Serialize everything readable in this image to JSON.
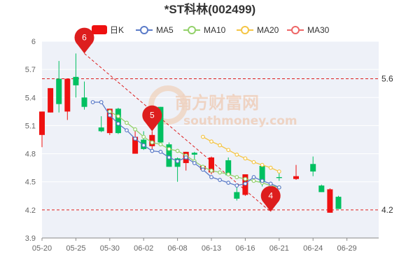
{
  "chart_data": {
    "type": "candlestick",
    "title": "*ST科林(002499)",
    "legend": [
      "日K",
      "MA5",
      "MA10",
      "MA20",
      "MA30"
    ],
    "colors": {
      "up": "#ee1111",
      "down": "#00c060",
      "MA5": "#5b7bc8",
      "MA10": "#93d16a",
      "MA20": "#f5c545",
      "MA30": "#ee6666",
      "pin": "#dd1e1e",
      "ref": "#dd1e1e"
    },
    "y_ticks": [
      "6",
      "5.7",
      "5.4",
      "5.1",
      "4.8",
      "4.5",
      "4.2",
      "3.9"
    ],
    "ylim": [
      3.9,
      6.0
    ],
    "x_ticks": [
      "05-20",
      "05-25",
      "05-30",
      "06-02",
      "06-08",
      "06-13",
      "06-16",
      "06-21",
      "06-24",
      "06-29"
    ],
    "x_tick_index": [
      0,
      4,
      8,
      12,
      16,
      20,
      24,
      28,
      32,
      36
    ],
    "grid": true,
    "legend_position": "top",
    "ref_lines": [
      {
        "value": 5.6,
        "label": "5.6"
      },
      {
        "value": 4.2,
        "label": "4.2"
      }
    ],
    "pins": [
      {
        "label": "6",
        "index": 5,
        "value": 5.87
      },
      {
        "label": "5",
        "index": 13,
        "value": 5.04
      },
      {
        "label": "4",
        "index": 27,
        "value": 4.18
      }
    ],
    "trend_lines": [
      {
        "from_index": 5,
        "from_value": 5.87,
        "to_index": 27,
        "to_value": 4.18
      }
    ],
    "candles": [
      {
        "o": 5.0,
        "c": 5.25,
        "h": 5.25,
        "l": 4.87
      },
      {
        "o": 5.24,
        "c": 5.5,
        "h": 5.5,
        "l": 5.24
      },
      {
        "o": 5.6,
        "c": 5.33,
        "h": 5.79,
        "l": 5.24
      },
      {
        "o": 5.25,
        "c": 5.6,
        "h": 5.6,
        "l": 5.16
      },
      {
        "o": 5.62,
        "c": 5.53,
        "h": 5.87,
        "l": 5.4
      },
      {
        "o": 5.4,
        "c": 5.3,
        "h": 5.57,
        "l": 5.27
      },
      {
        "o": 5.08,
        "c": 5.04,
        "h": 5.2,
        "l": 5.03
      },
      {
        "o": 5.02,
        "c": 5.28,
        "h": 5.28,
        "l": 5.0
      },
      {
        "o": 5.28,
        "c": 5.02,
        "h": 5.29,
        "l": 5.01
      },
      {
        "o": 4.8,
        "c": 4.98,
        "h": 5.05,
        "l": 4.8
      },
      {
        "o": 4.95,
        "c": 4.85,
        "h": 5.04,
        "l": 4.84
      },
      {
        "o": 4.88,
        "c": 5.0,
        "h": 5.04,
        "l": 4.85
      },
      {
        "o": 5.3,
        "c": 4.92,
        "h": 5.3,
        "l": 4.88
      },
      {
        "o": 4.9,
        "c": 4.66,
        "h": 4.92,
        "l": 4.66
      },
      {
        "o": 4.75,
        "c": 4.66,
        "h": 4.76,
        "l": 4.5
      },
      {
        "o": 4.7,
        "c": 4.82,
        "h": 4.82,
        "l": 4.62
      },
      {
        "o": 4.81,
        "c": 4.79,
        "h": 4.82,
        "l": 4.68
      },
      {
        "o": 4.63,
        "c": 4.67,
        "h": 4.68,
        "l": 4.62
      },
      {
        "o": 4.6,
        "c": 4.76,
        "h": 4.77,
        "l": 4.58
      },
      {
        "o": 4.73,
        "c": 4.57,
        "h": 4.76,
        "l": 4.56
      },
      {
        "o": 4.39,
        "c": 4.32,
        "h": 4.45,
        "l": 4.3
      },
      {
        "o": 4.36,
        "c": 4.58,
        "h": 4.58,
        "l": 4.35
      },
      {
        "o": 4.67,
        "c": 4.5,
        "h": 4.69,
        "l": 4.45
      },
      {
        "o": 4.55,
        "c": 4.54,
        "h": 4.6,
        "l": 4.51
      },
      {
        "o": 4.53,
        "c": 4.56,
        "h": 4.68,
        "l": 4.52
      },
      {
        "o": 4.69,
        "c": 4.61,
        "h": 4.77,
        "l": 4.56
      },
      {
        "o": 4.46,
        "c": 4.39,
        "h": 4.47,
        "l": 4.39
      },
      {
        "o": 4.17,
        "c": 4.42,
        "h": 4.43,
        "l": 4.17
      },
      {
        "o": 4.34,
        "c": 4.21,
        "h": 4.35,
        "l": 4.21
      }
    ],
    "candle_index": [
      0,
      1,
      2,
      3,
      4,
      5,
      7,
      8,
      9,
      11,
      12,
      13,
      14,
      15,
      16,
      17,
      18,
      19,
      20,
      22,
      23,
      24,
      26,
      28,
      30,
      32,
      33,
      34,
      35
    ],
    "ma5": [
      5.35,
      5.35,
      5.21,
      5.12,
      5.05,
      4.96,
      4.89,
      4.83,
      4.82,
      4.76,
      4.72,
      4.76,
      4.7,
      4.63,
      4.55,
      4.52,
      4.49,
      4.46,
      4.48,
      4.55,
      4.51,
      4.48,
      4.44
    ],
    "ma5_index": [
      6,
      7,
      8,
      9,
      10,
      11,
      12,
      13,
      14,
      15,
      16,
      17,
      18,
      19,
      20,
      21,
      22,
      23,
      24,
      25,
      26,
      27,
      28
    ],
    "ma10": [
      5.25,
      5.2,
      5.13,
      5.06,
      4.98,
      4.92,
      4.9,
      4.85,
      4.83,
      4.78,
      4.72,
      4.66,
      4.62,
      4.6,
      4.58,
      4.55,
      4.53,
      4.51,
      4.49,
      4.46,
      4.44
    ],
    "ma10_index": [
      8,
      9,
      10,
      11,
      12,
      13,
      14,
      15,
      16,
      17,
      18,
      19,
      20,
      21,
      22,
      23,
      24,
      25,
      26,
      27,
      28
    ],
    "ma20": [
      4.98,
      4.93,
      4.89,
      4.84,
      4.79,
      4.75,
      4.71,
      4.68,
      4.65,
      4.61
    ],
    "ma20_index": [
      19,
      20,
      21,
      22,
      23,
      24,
      25,
      26,
      27,
      28
    ]
  }
}
